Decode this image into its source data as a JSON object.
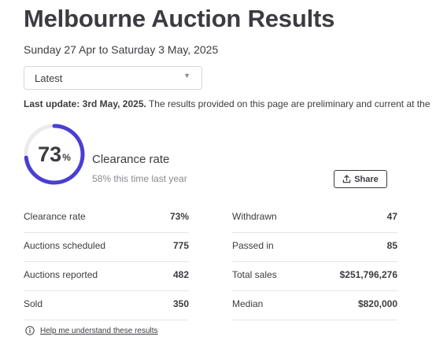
{
  "page": {
    "title": "Melbourne Auction Results",
    "date_range": "Sunday 27 Apr to Saturday 3 May, 2025"
  },
  "period_select": {
    "value": "Latest"
  },
  "notice": {
    "bold": "Last update: 3rd May, 2025.",
    "text": " The results provided on this page are preliminary and current at the"
  },
  "clearance": {
    "rate_value": "73",
    "rate_fraction": 0.73,
    "percent_sign": "%",
    "label": "Clearance rate",
    "last_year": "58% this time last year",
    "accent_color": "#4a3fd1"
  },
  "share": {
    "label": "Share"
  },
  "stats_left": [
    {
      "label": "Clearance rate",
      "value": "73%"
    },
    {
      "label": "Auctions scheduled",
      "value": "775"
    },
    {
      "label": "Auctions reported",
      "value": "482"
    },
    {
      "label": "Sold",
      "value": "350"
    }
  ],
  "stats_right": [
    {
      "label": "Withdrawn",
      "value": "47"
    },
    {
      "label": "Passed in",
      "value": "85"
    },
    {
      "label": "Total sales",
      "value": "$251,796,276"
    },
    {
      "label": "Median",
      "value": "$820,000"
    }
  ],
  "help": {
    "label": "Help me understand these results",
    "icon": "info-icon"
  }
}
